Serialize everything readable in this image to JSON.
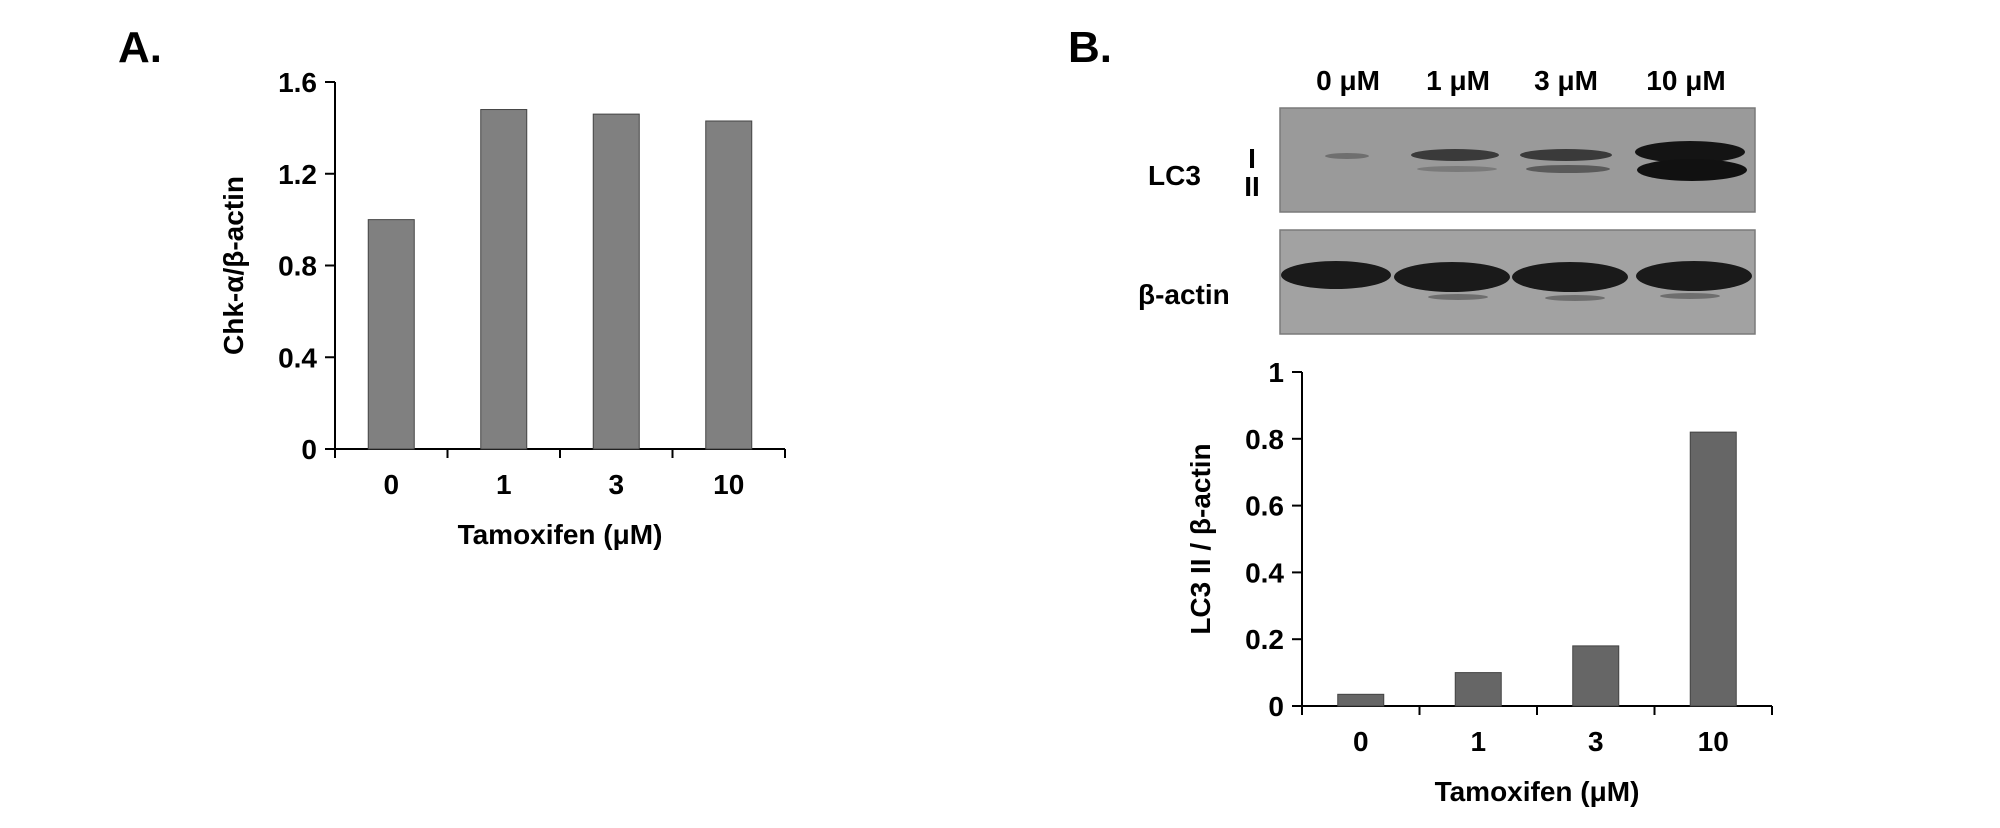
{
  "panel_a": {
    "letter": "A."
  },
  "panel_b": {
    "letter": "B.",
    "blot": {
      "lanes": [
        "0 μM",
        "1 μM",
        "3 μM",
        "10 μM"
      ],
      "lc3_label": "LC3",
      "band_labels": [
        "I",
        "II"
      ],
      "actin_label": "β-actin"
    }
  },
  "chart_data": [
    {
      "type": "bar",
      "panel": "A.",
      "categories": [
        "0",
        "1",
        "3",
        "10"
      ],
      "values": [
        1.0,
        1.48,
        1.46,
        1.43
      ],
      "xlabel": "Tamoxifen (μM)",
      "ylabel": "Chk-α/β-actin",
      "ylim": [
        0,
        1.6
      ],
      "yticks": [
        "0",
        "0.4",
        "0.8",
        "1.2",
        "1.6"
      ],
      "bar_color": "#808080",
      "grid": false
    },
    {
      "type": "bar",
      "panel": "B.",
      "categories": [
        "0",
        "1",
        "3",
        "10"
      ],
      "values": [
        0.035,
        0.1,
        0.18,
        0.82
      ],
      "xlabel": "Tamoxifen (μM)",
      "ylabel": "LC3 II / β-actin",
      "ylim": [
        0,
        1
      ],
      "yticks": [
        "0",
        "0.2",
        "0.4",
        "0.6",
        "0.8",
        "1"
      ],
      "bar_color": "#666666",
      "grid": false
    }
  ]
}
